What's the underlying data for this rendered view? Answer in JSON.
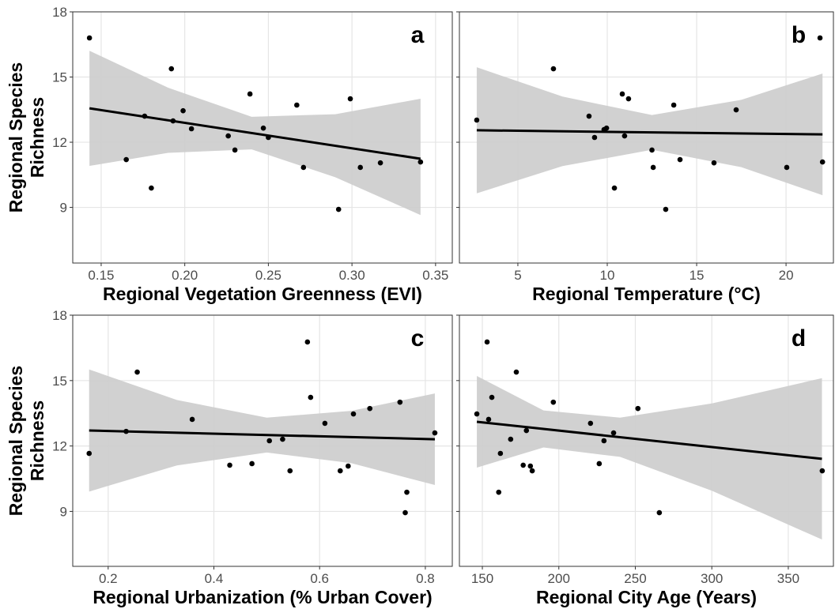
{
  "chart_data": [
    {
      "type": "scatter",
      "label": "a",
      "x_label": "Regional Vegetation Greenness (EVI)",
      "y_label": [
        "Regional Species",
        "Richness"
      ],
      "show_y_tick_labels": true,
      "grid": true,
      "xlim": [
        0.133,
        0.36
      ],
      "ylim": [
        6.44,
        18
      ],
      "xticks": [
        0.15,
        {
          "value": 0.2,
          "label": "0.20"
        },
        0.25,
        {
          "value": 0.3,
          "label": "0.30"
        },
        0.35
      ],
      "yticks": [
        9,
        12,
        15,
        18
      ],
      "point_color": "#000000",
      "fit_color": "#000000",
      "band_color": "#cccccc",
      "points": {
        "x": [
          0.143,
          0.192,
          0.239,
          0.299,
          0.267,
          0.199,
          0.176,
          0.193,
          0.204,
          0.247,
          0.226,
          0.25,
          0.23,
          0.165,
          0.341,
          0.317,
          0.271,
          0.305,
          0.18,
          0.292
        ],
        "y": [
          16.8,
          15.38,
          14.22,
          14.0,
          13.71,
          13.45,
          13.2,
          12.98,
          12.62,
          12.65,
          12.29,
          12.22,
          11.64,
          11.2,
          11.09,
          11.05,
          10.84,
          10.84,
          9.89,
          8.91
        ]
      },
      "fit": {
        "x": [
          0.143,
          0.341
        ],
        "y": [
          13.56,
          11.24
        ]
      },
      "band": {
        "x": [
          0.143,
          0.19,
          0.24,
          0.29,
          0.341
        ],
        "upper": [
          16.21,
          14.51,
          13.17,
          13.29,
          14.0
        ],
        "lower": [
          10.91,
          11.51,
          11.67,
          10.39,
          8.65
        ]
      }
    },
    {
      "type": "scatter",
      "label": "b",
      "x_label": "Regional Temperature (°C)",
      "show_y_tick_labels": false,
      "grid": true,
      "xlim": [
        1.73,
        22.65
      ],
      "ylim": [
        6.44,
        18
      ],
      "xticks": [
        5,
        10,
        15,
        20
      ],
      "yticks": [
        9,
        12,
        15,
        18
      ],
      "point_color": "#000000",
      "fit_color": "#000000",
      "band_color": "#cccccc",
      "points": {
        "x": [
          2.7,
          6.99,
          8.98,
          9.29,
          9.82,
          9.96,
          10.84,
          11.19,
          10.97,
          13.72,
          12.5,
          12.57,
          10.4,
          13.27,
          14.07,
          15.97,
          17.21,
          20.04,
          22.04,
          21.9
        ],
        "y": [
          13.02,
          15.38,
          13.2,
          12.22,
          12.58,
          12.65,
          14.22,
          14.0,
          12.29,
          13.71,
          11.64,
          10.84,
          9.89,
          8.91,
          11.2,
          11.05,
          13.49,
          10.84,
          11.09,
          16.8
        ]
      },
      "fit": {
        "x": [
          2.7,
          22.04
        ],
        "y": [
          12.55,
          12.36
        ]
      },
      "band": {
        "x": [
          2.7,
          7.5,
          12.5,
          17.5,
          22.04
        ],
        "upper": [
          15.45,
          14.1,
          13.25,
          13.95,
          15.16
        ],
        "lower": [
          9.65,
          10.9,
          11.65,
          10.85,
          9.56
        ]
      }
    },
    {
      "type": "scatter",
      "label": "c",
      "x_label": "Regional Urbanization (% Urban Cover)",
      "y_label": [
        "Regional Species",
        "Richness"
      ],
      "show_y_tick_labels": true,
      "grid": true,
      "xlim": [
        0.133,
        0.851
      ],
      "ylim": [
        6.48,
        18
      ],
      "xticks": [
        0.2,
        0.4,
        0.6,
        0.8
      ],
      "yticks": [
        9,
        12,
        15,
        18
      ],
      "point_color": "#000000",
      "fit_color": "#000000",
      "band_color": "#cccccc",
      "points": {
        "x": [
          0.164,
          0.255,
          0.234,
          0.359,
          0.43,
          0.472,
          0.505,
          0.53,
          0.544,
          0.577,
          0.583,
          0.61,
          0.639,
          0.654,
          0.664,
          0.695,
          0.752,
          0.765,
          0.762,
          0.818
        ],
        "y": [
          11.66,
          15.39,
          12.67,
          13.22,
          11.12,
          11.19,
          12.24,
          12.31,
          10.86,
          16.77,
          14.23,
          13.04,
          10.86,
          11.08,
          13.47,
          13.72,
          14.01,
          9.88,
          8.94,
          12.6
        ]
      },
      "fit": {
        "x": [
          0.164,
          0.818
        ],
        "y": [
          12.71,
          12.31
        ]
      },
      "band": {
        "x": [
          0.164,
          0.33,
          0.5,
          0.66,
          0.818
        ],
        "upper": [
          15.51,
          14.11,
          13.3,
          13.61,
          14.41
        ],
        "lower": [
          9.91,
          11.11,
          11.7,
          11.21,
          10.21
        ]
      }
    },
    {
      "type": "scatter",
      "label": "d",
      "x_label": "Regional City Age (Years)",
      "show_y_tick_labels": false,
      "grid": true,
      "xlim": [
        135,
        379.5
      ],
      "ylim": [
        6.48,
        18
      ],
      "xticks": [
        150,
        200,
        250,
        300,
        350
      ],
      "yticks": [
        9,
        12,
        15,
        18
      ],
      "point_color": "#000000",
      "fit_color": "#000000",
      "band_color": "#cccccc",
      "points": {
        "x": [
          146.4,
          153.1,
          154.1,
          156.2,
          172.2,
          161.8,
          160.7,
          168.5,
          176.7,
          178.8,
          181.4,
          182.6,
          196.4,
          220.7,
          235.8,
          229.5,
          226.4,
          251.7,
          265.7,
          372.2
        ],
        "y": [
          13.47,
          16.77,
          13.22,
          14.23,
          15.39,
          11.66,
          9.88,
          12.31,
          11.12,
          12.71,
          11.08,
          10.86,
          14.01,
          13.04,
          12.6,
          12.24,
          11.19,
          13.72,
          8.94,
          10.86
        ]
      },
      "fit": {
        "x": [
          146.4,
          372
        ],
        "y": [
          13.11,
          11.41
        ]
      },
      "band": {
        "x": [
          146.4,
          190,
          240,
          300,
          372
        ],
        "upper": [
          15.21,
          13.63,
          13.3,
          13.95,
          15.11
        ],
        "lower": [
          11.01,
          11.93,
          11.5,
          9.95,
          7.71
        ]
      }
    }
  ]
}
